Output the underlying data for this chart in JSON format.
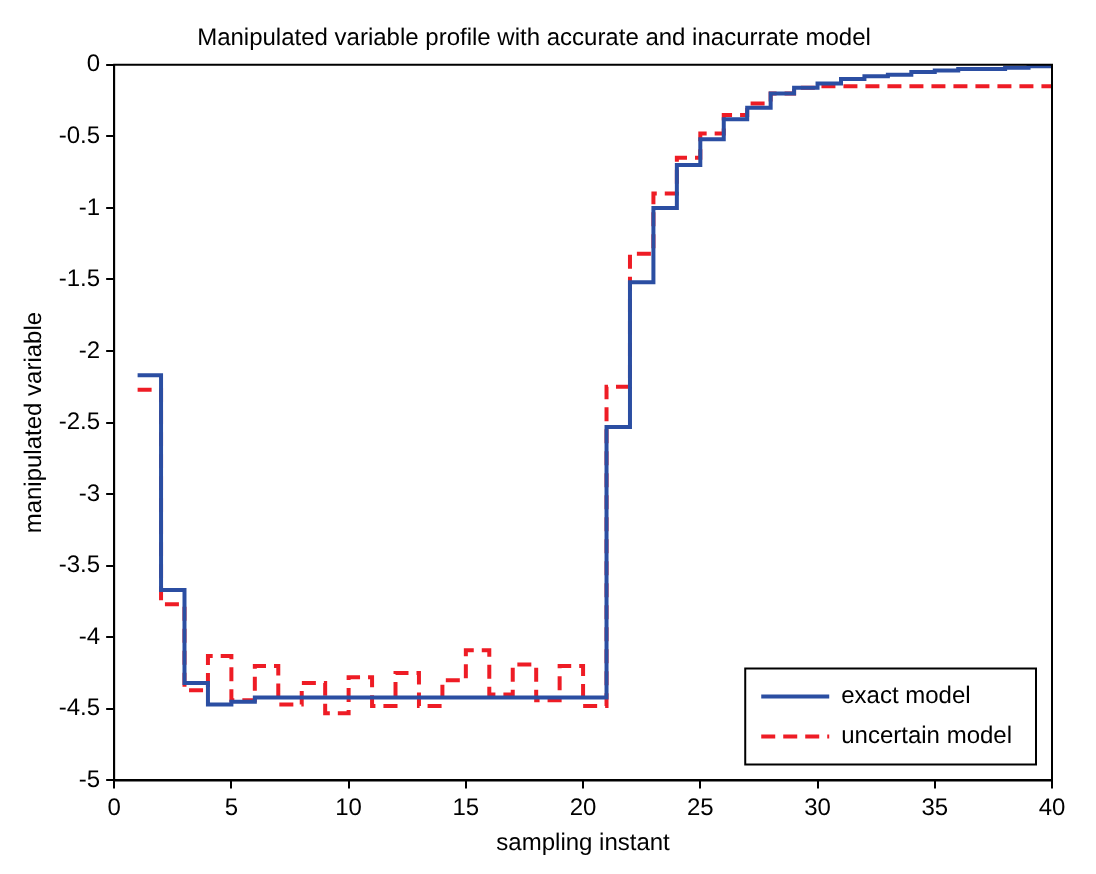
{
  "chart_data": {
    "type": "step",
    "title": "Manipulated variable profile with accurate and inacurrate model",
    "xlabel": "sampling instant",
    "ylabel": "manipulated variable",
    "x": [
      1,
      2,
      3,
      4,
      5,
      6,
      7,
      8,
      9,
      10,
      11,
      12,
      13,
      14,
      15,
      16,
      17,
      18,
      19,
      20,
      21,
      22,
      23,
      24,
      25,
      26,
      27,
      28,
      29,
      30,
      31,
      32,
      33,
      34,
      35,
      36,
      37,
      38,
      39,
      40
    ],
    "series": [
      {
        "name": "exact model",
        "color": "#2b4ea2",
        "line_style": "solid",
        "values": [
          -2.17,
          -3.67,
          -4.32,
          -4.47,
          -4.45,
          -4.42,
          -4.42,
          -4.42,
          -4.42,
          -4.42,
          -4.42,
          -4.42,
          -4.42,
          -4.42,
          -4.42,
          -4.42,
          -4.42,
          -4.42,
          -4.42,
          -4.42,
          -2.53,
          -1.52,
          -1.0,
          -0.7,
          -0.52,
          -0.38,
          -0.3,
          -0.2,
          -0.16,
          -0.13,
          -0.1,
          -0.08,
          -0.07,
          -0.05,
          -0.04,
          -0.03,
          -0.03,
          -0.02,
          -0.01,
          -0.01
        ]
      },
      {
        "name": "uncertain model",
        "color": "#ee1c25",
        "line_style": "dashed",
        "values": [
          -2.27,
          -3.77,
          -4.37,
          -4.13,
          -4.44,
          -4.2,
          -4.47,
          -4.32,
          -4.53,
          -4.28,
          -4.48,
          -4.25,
          -4.48,
          -4.3,
          -4.09,
          -4.4,
          -4.19,
          -4.44,
          -4.2,
          -4.48,
          -2.25,
          -1.32,
          -0.9,
          -0.65,
          -0.48,
          -0.35,
          -0.27,
          -0.2,
          -0.16,
          -0.15,
          -0.15,
          -0.15,
          -0.15,
          -0.15,
          -0.15,
          -0.15,
          -0.15,
          -0.15,
          -0.15,
          -0.15
        ]
      }
    ],
    "xlim": [
      0,
      40
    ],
    "xticks": [
      0,
      5,
      10,
      15,
      20,
      25,
      30,
      35,
      40
    ],
    "ylim": [
      -5,
      0
    ],
    "yticks": [
      -5,
      -4.5,
      -4,
      -3.5,
      -3,
      -2.5,
      -2,
      -1.5,
      -1,
      -0.5,
      0
    ],
    "grid": false,
    "legend": "bottom right",
    "marker": "none"
  }
}
